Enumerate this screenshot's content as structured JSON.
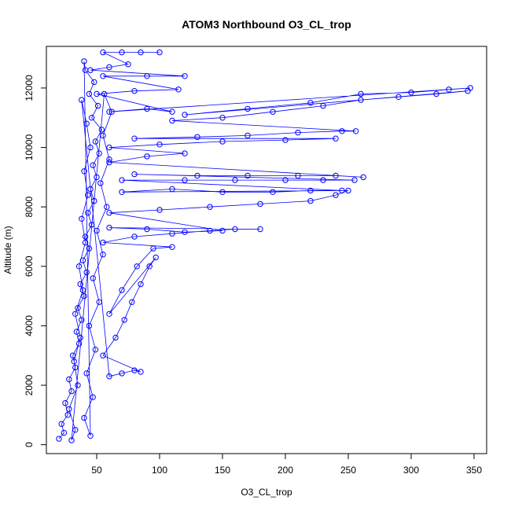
{
  "chart_data": {
    "type": "scatter",
    "title": "ATOM3 Northbound O3_CL_trop",
    "xlabel": "O3_CL_trop",
    "ylabel": "Altitude (m)",
    "xlim": [
      10,
      360
    ],
    "ylim": [
      -300,
      13400
    ],
    "x_ticks": [
      50,
      100,
      150,
      200,
      250,
      300,
      350
    ],
    "x_tick_labels": [
      "50",
      "100",
      "150",
      "200",
      "250",
      "300",
      "350"
    ],
    "y_ticks": [
      0,
      2000,
      4000,
      6000,
      8000,
      10000,
      12000
    ],
    "y_tick_labels": [
      "0",
      "2000",
      "4000",
      "6000",
      "8000",
      "10000",
      "12000"
    ],
    "grid": false,
    "legend": "none",
    "marker": "open-circle",
    "connect_points": true,
    "color": "#0000ff",
    "series": [
      {
        "points": [
          [
            20,
            200
          ],
          [
            24,
            400
          ],
          [
            22,
            700
          ],
          [
            27,
            1000
          ],
          [
            25,
            1400
          ],
          [
            30,
            1800
          ],
          [
            28,
            2200
          ],
          [
            33,
            2600
          ],
          [
            31,
            3000
          ],
          [
            36,
            3400
          ],
          [
            34,
            3800
          ],
          [
            38,
            4200
          ],
          [
            35,
            4600
          ],
          [
            40,
            5000
          ],
          [
            37,
            5400
          ],
          [
            42,
            5800
          ],
          [
            39,
            6200
          ],
          [
            44,
            6600
          ],
          [
            41,
            7000
          ],
          [
            46,
            7400
          ],
          [
            43,
            7800
          ],
          [
            48,
            8200
          ],
          [
            45,
            8600
          ],
          [
            50,
            9000
          ],
          [
            47,
            9400
          ],
          [
            52,
            9800
          ],
          [
            49,
            10200
          ],
          [
            54,
            10600
          ],
          [
            46,
            11000
          ],
          [
            51,
            11400
          ],
          [
            44,
            11800
          ],
          [
            48,
            12200
          ],
          [
            41,
            12600
          ],
          [
            40,
            12900
          ],
          [
            45,
            300
          ],
          [
            40,
            900
          ],
          [
            47,
            1600
          ],
          [
            42,
            2400
          ],
          [
            49,
            3200
          ],
          [
            44,
            4000
          ],
          [
            52,
            4800
          ],
          [
            47,
            5600
          ],
          [
            55,
            6400
          ],
          [
            50,
            7200
          ],
          [
            58,
            8000
          ],
          [
            53,
            8800
          ],
          [
            60,
            9600
          ],
          [
            55,
            10400
          ],
          [
            62,
            11200
          ],
          [
            56,
            11800
          ],
          [
            30,
            150
          ],
          [
            33,
            500
          ],
          [
            28,
            1200
          ],
          [
            35,
            2000
          ],
          [
            32,
            2800
          ],
          [
            37,
            3600
          ],
          [
            33,
            4400
          ],
          [
            39,
            5200
          ],
          [
            36,
            6000
          ],
          [
            41,
            6800
          ],
          [
            38,
            7600
          ],
          [
            43,
            8400
          ],
          [
            40,
            9200
          ],
          [
            45,
            10000
          ],
          [
            42,
            10800
          ],
          [
            38,
            11600
          ],
          [
            60,
            2300
          ],
          [
            70,
            2400
          ],
          [
            80,
            2500
          ],
          [
            85,
            2450
          ],
          [
            55,
            3000
          ],
          [
            65,
            3600
          ],
          [
            72,
            4200
          ],
          [
            78,
            4800
          ],
          [
            85,
            5400
          ],
          [
            92,
            6000
          ],
          [
            97,
            6300
          ],
          [
            60,
            4400
          ],
          [
            70,
            5200
          ],
          [
            82,
            6000
          ],
          [
            95,
            6600
          ],
          [
            110,
            6650
          ],
          [
            55,
            6800
          ],
          [
            80,
            7000
          ],
          [
            110,
            7100
          ],
          [
            140,
            7200
          ],
          [
            160,
            7250
          ],
          [
            180,
            7250
          ],
          [
            60,
            7300
          ],
          [
            90,
            7250
          ],
          [
            120,
            7150
          ],
          [
            150,
            7200
          ],
          [
            60,
            7800
          ],
          [
            100,
            7900
          ],
          [
            140,
            8000
          ],
          [
            180,
            8100
          ],
          [
            220,
            8200
          ],
          [
            240,
            8400
          ],
          [
            250,
            8550
          ],
          [
            70,
            8500
          ],
          [
            110,
            8600
          ],
          [
            150,
            8500
          ],
          [
            190,
            8500
          ],
          [
            220,
            8550
          ],
          [
            245,
            8550
          ],
          [
            70,
            8900
          ],
          [
            120,
            8900
          ],
          [
            160,
            8900
          ],
          [
            200,
            8900
          ],
          [
            230,
            8900
          ],
          [
            255,
            8900
          ],
          [
            80,
            9100
          ],
          [
            130,
            9050
          ],
          [
            170,
            9050
          ],
          [
            210,
            9050
          ],
          [
            240,
            9050
          ],
          [
            262,
            9000
          ],
          [
            60,
            9500
          ],
          [
            90,
            9700
          ],
          [
            120,
            9800
          ],
          [
            60,
            10000
          ],
          [
            100,
            10100
          ],
          [
            150,
            10200
          ],
          [
            200,
            10250
          ],
          [
            240,
            10300
          ],
          [
            80,
            10300
          ],
          [
            130,
            10350
          ],
          [
            170,
            10400
          ],
          [
            210,
            10500
          ],
          [
            245,
            10550
          ],
          [
            256,
            10550
          ],
          [
            110,
            10900
          ],
          [
            150,
            11000
          ],
          [
            190,
            11200
          ],
          [
            230,
            11400
          ],
          [
            260,
            11600
          ],
          [
            290,
            11700
          ],
          [
            320,
            11800
          ],
          [
            345,
            11900
          ],
          [
            120,
            11100
          ],
          [
            170,
            11300
          ],
          [
            220,
            11500
          ],
          [
            260,
            11800
          ],
          [
            300,
            11850
          ],
          [
            330,
            11950
          ],
          [
            347,
            12000
          ],
          [
            60,
            11200
          ],
          [
            90,
            11300
          ],
          [
            110,
            11200
          ],
          [
            50,
            11800
          ],
          [
            80,
            11900
          ],
          [
            115,
            11950
          ],
          [
            55,
            12400
          ],
          [
            90,
            12400
          ],
          [
            120,
            12400
          ],
          [
            45,
            12600
          ],
          [
            60,
            12700
          ],
          [
            75,
            12800
          ],
          [
            55,
            13200
          ],
          [
            70,
            13200
          ],
          [
            85,
            13200
          ],
          [
            100,
            13200
          ]
        ]
      }
    ]
  }
}
